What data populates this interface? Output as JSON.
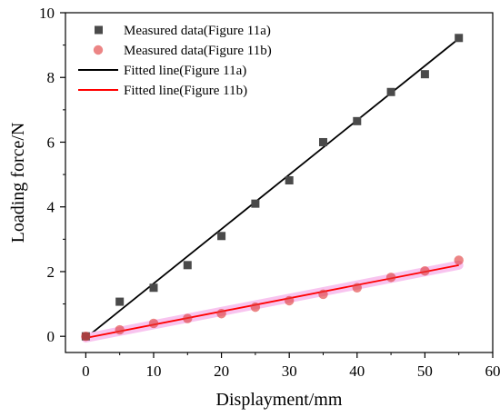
{
  "chart_data": {
    "type": "scatter",
    "title": "",
    "xlabel": "Displayment/mm",
    "ylabel": "Loading force/N",
    "xlim": [
      -3,
      60
    ],
    "ylim": [
      -0.5,
      10
    ],
    "xticks": [
      "0",
      "10",
      "20",
      "30",
      "40",
      "50",
      "60"
    ],
    "yticks": [
      "0",
      "2",
      "4",
      "6",
      "8",
      "10"
    ],
    "grid": false,
    "legend_position": "top-left",
    "series": [
      {
        "name": "Measured data(Figure 11a)",
        "kind": "scatter",
        "marker": "square",
        "color": "#4a4a4a",
        "x": [
          0,
          5,
          10,
          15,
          20,
          25,
          30,
          35,
          40,
          45,
          50,
          55
        ],
        "y": [
          0.0,
          1.07,
          1.5,
          2.2,
          3.1,
          4.1,
          4.82,
          6.0,
          6.65,
          7.55,
          8.1,
          9.22
        ]
      },
      {
        "name": "Measured data(Figure 11b)",
        "kind": "scatter",
        "marker": "circle",
        "color": "#e03a3a",
        "x": [
          0,
          5,
          10,
          15,
          20,
          25,
          30,
          35,
          40,
          45,
          50,
          55
        ],
        "y": [
          0.0,
          0.2,
          0.4,
          0.55,
          0.7,
          0.9,
          1.1,
          1.3,
          1.5,
          1.82,
          2.02,
          2.35
        ]
      },
      {
        "name": "Fitted line(Figure 11a)",
        "kind": "line",
        "color": "#000000",
        "x": [
          0,
          55
        ],
        "y": [
          -0.05,
          9.2
        ]
      },
      {
        "name": "Fitted line(Figure 11b)",
        "kind": "line",
        "color": "#ff0000",
        "x": [
          0,
          55
        ],
        "y": [
          -0.05,
          2.2
        ]
      }
    ]
  }
}
